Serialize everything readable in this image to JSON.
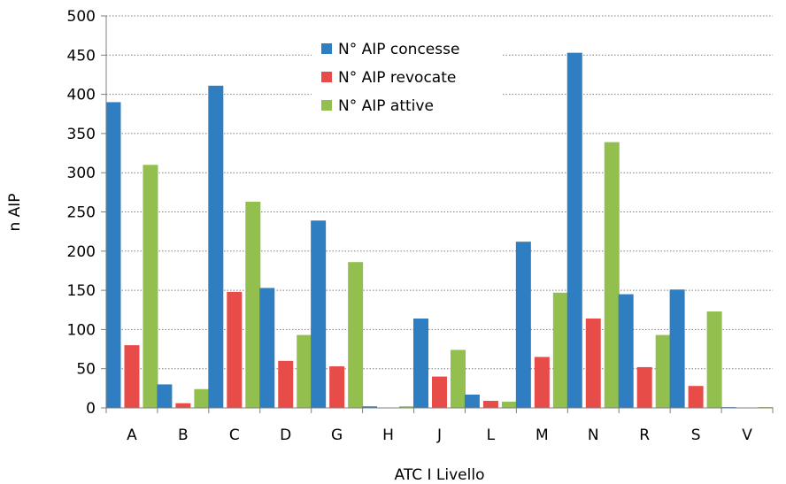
{
  "chart_data": {
    "type": "bar",
    "title": "",
    "xlabel": "ATC I Livello",
    "ylabel": "n AIP",
    "categories": [
      "A",
      "B",
      "C",
      "D",
      "G",
      "H",
      "J",
      "L",
      "M",
      "N",
      "R",
      "S",
      "V"
    ],
    "ylim": [
      0,
      500
    ],
    "yticks": [
      0,
      50,
      100,
      150,
      200,
      250,
      300,
      350,
      400,
      450,
      500
    ],
    "grid": true,
    "legend_position": "top-center",
    "series": [
      {
        "name": "N° AIP concesse",
        "color": "#2E7EC1",
        "values": [
          390,
          30,
          411,
          153,
          239,
          2,
          114,
          17,
          212,
          453,
          145,
          151,
          1
        ]
      },
      {
        "name": "N° AIP revocate",
        "color": "#E84C48",
        "values": [
          80,
          6,
          148,
          60,
          53,
          0,
          40,
          9,
          65,
          114,
          52,
          28,
          0
        ]
      },
      {
        "name": "N° AIP attive",
        "color": "#92BF4E",
        "values": [
          310,
          24,
          263,
          93,
          186,
          2,
          74,
          8,
          147,
          339,
          93,
          123,
          1
        ]
      }
    ]
  }
}
